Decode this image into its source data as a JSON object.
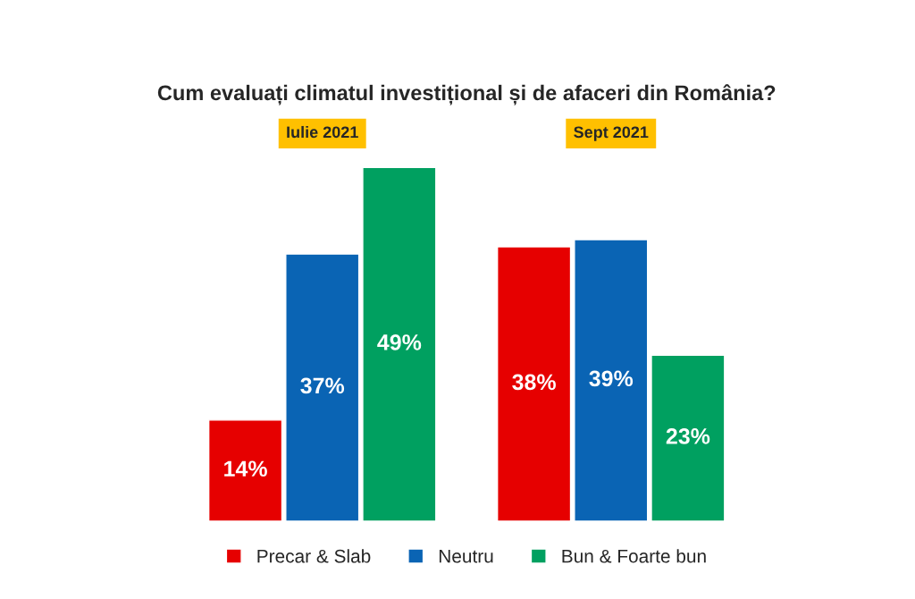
{
  "chart_data": {
    "type": "bar",
    "title": "Cum evaluați climatul investițional și de afaceri din România?",
    "categories": [
      "Iulie 2021",
      "Sept 2021"
    ],
    "series": [
      {
        "name": "Precar & Slab",
        "color": "#e60000",
        "values": [
          14,
          38
        ],
        "value_labels": [
          "14%",
          "38%"
        ]
      },
      {
        "name": "Neutru",
        "color": "#0a64b4",
        "values": [
          37,
          39
        ],
        "value_labels": [
          "37%",
          "39%"
        ]
      },
      {
        "name": "Bun & Foarte bun",
        "color": "#00a060",
        "values": [
          49,
          23
        ],
        "value_labels": [
          "49%",
          "23%"
        ]
      }
    ],
    "legend": "bottom",
    "grid": false
  }
}
